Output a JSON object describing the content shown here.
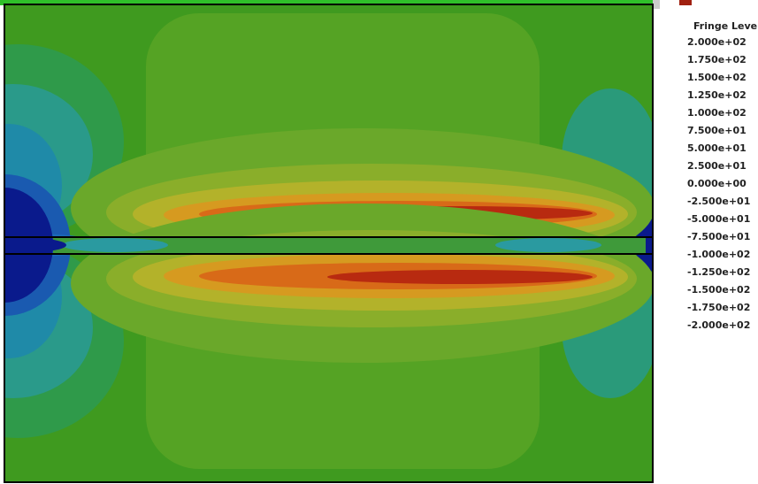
{
  "legend": {
    "title": "Fringe Leve",
    "levels": [
      "2.000e+02",
      "1.750e+02",
      "1.500e+02",
      "1.250e+02",
      "1.000e+02",
      "7.500e+01",
      "5.000e+01",
      "2.500e+01",
      "0.000e+00",
      "-2.500e+01",
      "-5.000e+01",
      "-7.500e+01",
      "-1.000e+02",
      "-1.250e+02",
      "-1.500e+02",
      "-1.750e+02",
      "-2.000e+02"
    ]
  }
}
